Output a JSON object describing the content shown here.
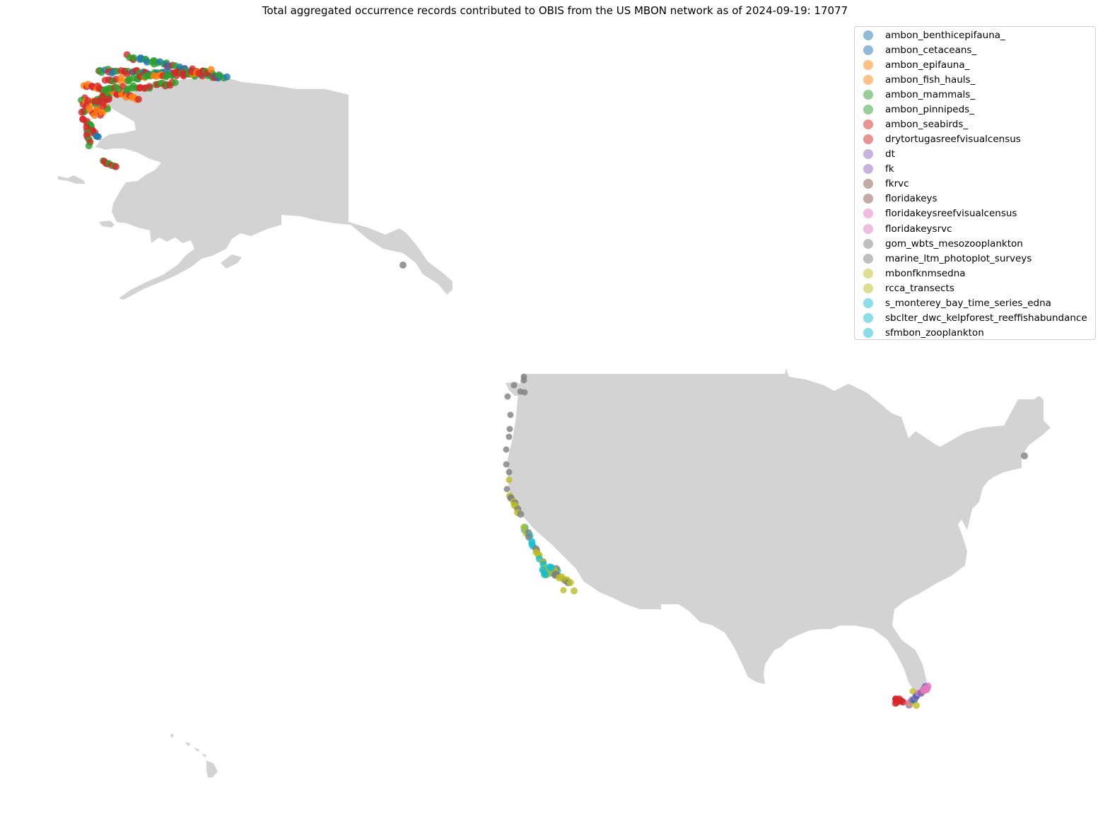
{
  "title": "Total aggregated occurrence records contributed to OBIS from the US MBON network as of 2024-09-19: 17077",
  "colors": {
    "land": "#d3d3d3",
    "blue": "#1f77b4",
    "orange": "#ff7f0e",
    "green": "#2ca02c",
    "red": "#d62728",
    "purple": "#9467bd",
    "brown": "#8c564b",
    "pink": "#e377c2",
    "gray": "#7f7f7f",
    "olive": "#bcbd22",
    "cyan": "#17becf"
  },
  "legend": [
    {
      "label": "ambon_benthicepifauna_",
      "color": "#1f77b4"
    },
    {
      "label": "ambon_cetaceans_",
      "color": "#1f77b4"
    },
    {
      "label": "ambon_epifauna_",
      "color": "#ff7f0e"
    },
    {
      "label": "ambon_fish_hauls_",
      "color": "#ff7f0e"
    },
    {
      "label": "ambon_mammals_",
      "color": "#2ca02c"
    },
    {
      "label": "ambon_pinnipeds_",
      "color": "#2ca02c"
    },
    {
      "label": "ambon_seabirds_",
      "color": "#d62728"
    },
    {
      "label": "drytortugasreefvisualcensus",
      "color": "#d62728"
    },
    {
      "label": "dt",
      "color": "#9467bd"
    },
    {
      "label": "fk",
      "color": "#9467bd"
    },
    {
      "label": "fkrvc",
      "color": "#8c564b"
    },
    {
      "label": "floridakeys",
      "color": "#8c564b"
    },
    {
      "label": "floridakeysreefvisualcensus",
      "color": "#e377c2"
    },
    {
      "label": "floridakeysrvc",
      "color": "#e377c2"
    },
    {
      "label": "gom_wbts_mesozooplankton",
      "color": "#7f7f7f"
    },
    {
      "label": "marine_ltm_photoplot_surveys",
      "color": "#7f7f7f"
    },
    {
      "label": "mbonfknmsedna",
      "color": "#bcbd22"
    },
    {
      "label": "rcca_transects",
      "color": "#bcbd22"
    },
    {
      "label": "s_monterey_bay_time_series_edna",
      "color": "#17becf"
    },
    {
      "label": "sbclter_dwc_kelpforest_reeffishabundance",
      "color": "#17becf"
    },
    {
      "label": "sfmbon_zooplankton",
      "color": "#17becf"
    }
  ]
}
